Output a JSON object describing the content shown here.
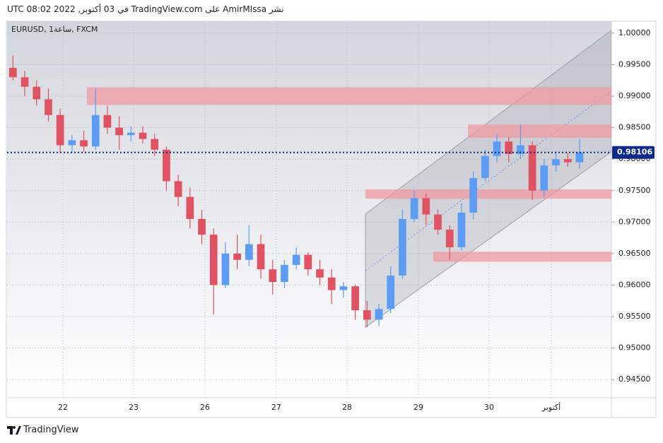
{
  "header": "نشر AmirMIssa على TradingView.com في 03 أكتوبر, 2022 08:02 UTC",
  "footer": "TradingView",
  "chart_data": {
    "type": "candlestick",
    "title": "EURUSD, 1ساعة, FXCM",
    "up_color": "#5d9cf5",
    "down_color": "#e05261",
    "grid": true,
    "xlim": [
      0,
      51.2
    ],
    "xticks": [
      {
        "value": 4.73,
        "label": "22"
      },
      {
        "value": 10.72,
        "label": "23"
      },
      {
        "value": 16.77,
        "label": "26"
      },
      {
        "value": 22.81,
        "label": "27"
      },
      {
        "value": 28.8,
        "label": "28"
      },
      {
        "value": 34.85,
        "label": "29"
      },
      {
        "value": 40.84,
        "label": "30"
      },
      {
        "value": 46.11,
        "label": "أكتوبر"
      }
    ],
    "ylim": [
      0.9421,
      1.0019
    ],
    "yticks": [
      {
        "value": 0.945,
        "label": "0.94500"
      },
      {
        "value": 0.95,
        "label": "0.95000"
      },
      {
        "value": 0.955,
        "label": "0.95500"
      },
      {
        "value": 0.96,
        "label": "0.96000"
      },
      {
        "value": 0.965,
        "label": "0.96500"
      },
      {
        "value": 0.97,
        "label": "0.97000"
      },
      {
        "value": 0.975,
        "label": "0.97500"
      },
      {
        "value": 0.98,
        "label": "0.98000"
      },
      {
        "value": 0.985,
        "label": "0.98500"
      },
      {
        "value": 0.99,
        "label": "0.99000"
      },
      {
        "value": 0.995,
        "label": "0.99500"
      },
      {
        "value": 1.0,
        "label": "1.00000"
      }
    ],
    "last_price": 0.98106,
    "last_price_color": "#0d2a8a",
    "open": [
      0.9945,
      0.993,
      0.9915,
      0.9895,
      0.987,
      0.9822,
      0.983,
      0.982,
      0.987,
      0.985,
      0.9838,
      0.9842,
      0.9832,
      0.9815,
      0.9765,
      0.974,
      0.9705,
      0.968,
      0.96,
      0.965,
      0.964,
      0.9665,
      0.9625,
      0.9605,
      0.9632,
      0.9648,
      0.9625,
      0.9612,
      0.9592,
      0.9598,
      0.956,
      0.9545,
      0.9562,
      0.9615,
      0.9705,
      0.9738,
      0.9712,
      0.9688,
      0.966,
      0.9715,
      0.977,
      0.9805,
      0.9828,
      0.9808,
      0.9822,
      0.975,
      0.979,
      0.98,
      0.9795
    ],
    "high": [
      0.9965,
      0.994,
      0.9925,
      0.9912,
      0.988,
      0.9838,
      0.9845,
      0.9912,
      0.9885,
      0.9868,
      0.9852,
      0.9852,
      0.984,
      0.982,
      0.9775,
      0.9755,
      0.972,
      0.969,
      0.9668,
      0.968,
      0.9695,
      0.968,
      0.964,
      0.964,
      0.966,
      0.9652,
      0.964,
      0.9625,
      0.9605,
      0.96,
      0.9575,
      0.957,
      0.963,
      0.972,
      0.975,
      0.9745,
      0.972,
      0.9695,
      0.973,
      0.978,
      0.9815,
      0.984,
      0.9835,
      0.9855,
      0.9828,
      0.98,
      0.9812,
      0.981,
      0.9832
    ],
    "low": [
      0.9925,
      0.99,
      0.9885,
      0.986,
      0.981,
      0.981,
      0.9812,
      0.9815,
      0.984,
      0.9815,
      0.9828,
      0.9825,
      0.9805,
      0.975,
      0.9725,
      0.969,
      0.9665,
      0.9553,
      0.9595,
      0.9625,
      0.963,
      0.961,
      0.9585,
      0.9595,
      0.9625,
      0.9615,
      0.96,
      0.957,
      0.958,
      0.9545,
      0.9533,
      0.9535,
      0.9555,
      0.961,
      0.97,
      0.9695,
      0.968,
      0.964,
      0.9655,
      0.9705,
      0.9765,
      0.9795,
      0.9795,
      0.98,
      0.9735,
      0.974,
      0.978,
      0.9788,
      0.9785
    ],
    "close": [
      0.993,
      0.9915,
      0.9895,
      0.987,
      0.9822,
      0.983,
      0.982,
      0.987,
      0.985,
      0.9838,
      0.9842,
      0.9832,
      0.9815,
      0.9765,
      0.974,
      0.9705,
      0.968,
      0.96,
      0.965,
      0.964,
      0.9665,
      0.9625,
      0.9605,
      0.9632,
      0.9648,
      0.9625,
      0.9612,
      0.9592,
      0.9598,
      0.956,
      0.9545,
      0.9562,
      0.9615,
      0.9705,
      0.9738,
      0.9712,
      0.9688,
      0.966,
      0.9715,
      0.977,
      0.9805,
      0.9828,
      0.9808,
      0.9822,
      0.975,
      0.979,
      0.98,
      0.9795,
      0.98106
    ],
    "zones": [
      {
        "start": 6.75,
        "bottom": 0.9886,
        "top": 0.9914,
        "color": "#ef9aa3"
      },
      {
        "start": 39.05,
        "bottom": 0.9834,
        "top": 0.9855,
        "color": "#ef9aa3"
      },
      {
        "start": 30.36,
        "bottom": 0.9737,
        "top": 0.9752,
        "color": "#ef9aa3"
      },
      {
        "start": 36.11,
        "bottom": 0.9637,
        "top": 0.9653,
        "color": "#ef9aa3"
      }
    ],
    "channel": {
      "start": 30.36,
      "end": 51.2,
      "lower": [
        0.9533,
        0.98115
      ],
      "upper": [
        0.97128,
        1.00045
      ],
      "color": "#9aa0aa"
    }
  }
}
